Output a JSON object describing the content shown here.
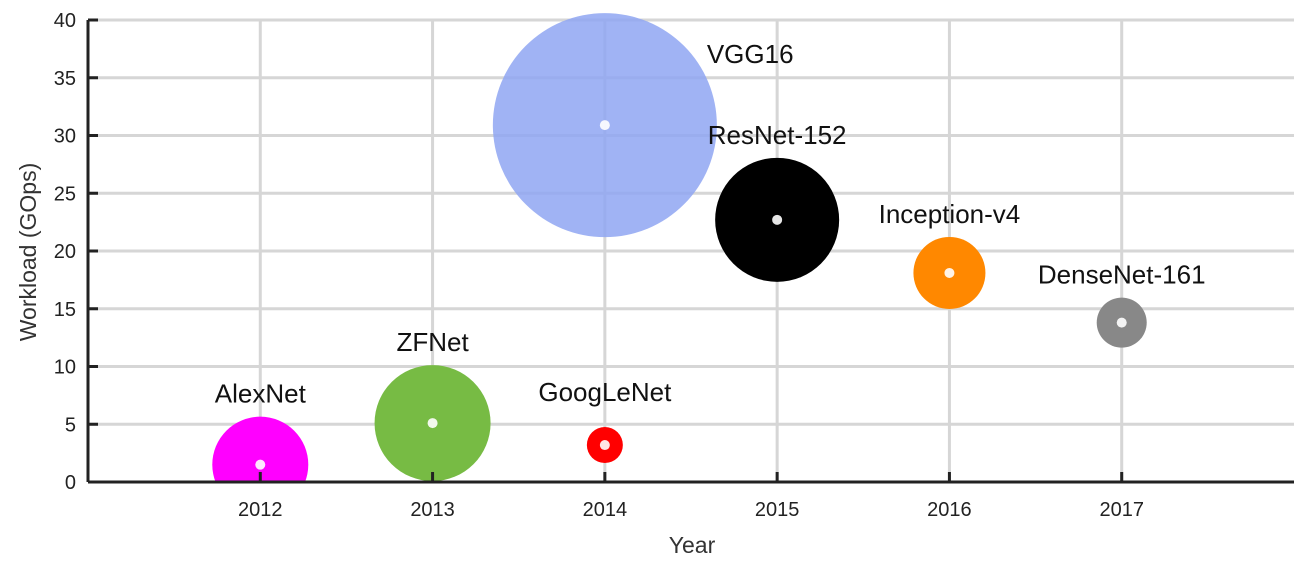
{
  "chart_data": {
    "type": "scatter",
    "xlabel": "Year",
    "ylabel": "Workload (GOps)",
    "x_ticks": [
      "2012",
      "2013",
      "2014",
      "2015",
      "2016",
      "2017"
    ],
    "y_ticks": [
      "0",
      "5",
      "10",
      "15",
      "20",
      "25",
      "30",
      "35",
      "40"
    ],
    "xlim": [
      2011,
      2018
    ],
    "ylim": [
      0,
      40
    ],
    "grid": true,
    "legend": "none",
    "bubble_size_note": "",
    "points": [
      {
        "name": "AlexNet",
        "x": 2012,
        "y": 1.5,
        "size": 48,
        "color": "#ff00ff"
      },
      {
        "name": "ZFNet",
        "x": 2013,
        "y": 5.1,
        "size": 58,
        "color": "#77bb44"
      },
      {
        "name": "GoogLeNet",
        "x": 2014,
        "y": 3.2,
        "size": 18,
        "color": "#ff0000"
      },
      {
        "name": "VGG16",
        "x": 2014,
        "y": 30.9,
        "size": 112,
        "color": "#8fa6f2"
      },
      {
        "name": "ResNet-152",
        "x": 2015,
        "y": 22.7,
        "size": 62,
        "color": "#000000"
      },
      {
        "name": "Inception-v4",
        "x": 2016,
        "y": 18.1,
        "size": 36,
        "color": "#ff8800"
      },
      {
        "name": "DenseNet-161",
        "x": 2017,
        "y": 13.8,
        "size": 25,
        "color": "#888888"
      }
    ]
  }
}
